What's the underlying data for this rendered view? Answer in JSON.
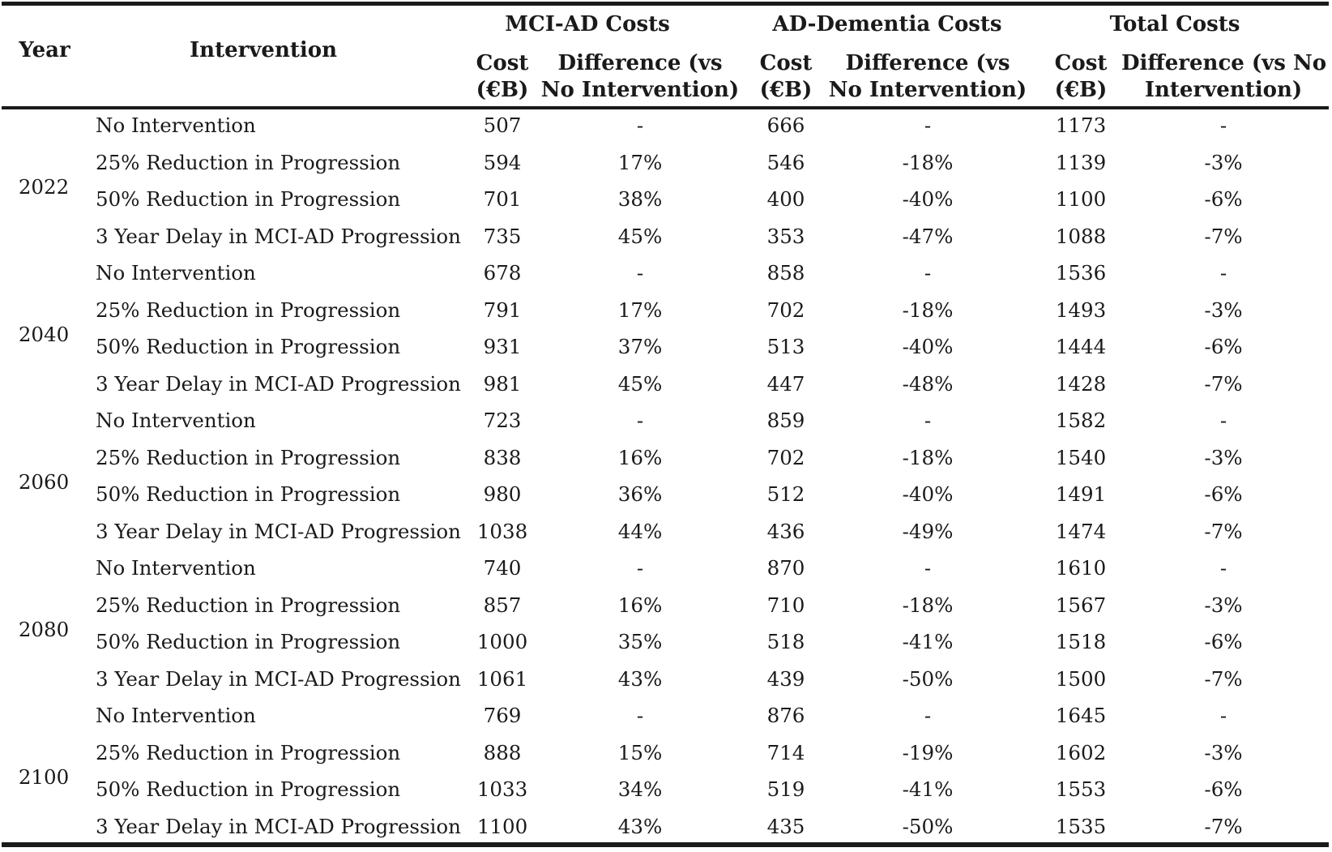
{
  "headers": {
    "year": "Year",
    "intervention": "Intervention",
    "groups": [
      "MCI-AD Costs",
      "AD-Dementia Costs",
      "Total Costs"
    ],
    "cost_line1": "Cost",
    "cost_line2": "(€B)",
    "diff_line1": "Difference (vs",
    "diff_line2": "No Intervention)",
    "total_diff_line1": "Difference (vs No",
    "total_diff_line2": "Intervention)"
  },
  "year_groups": [
    {
      "year": "2022",
      "rows": [
        {
          "intervention": "No Intervention",
          "mci_cost": "507",
          "mci_diff": "-",
          "ad_cost": "666",
          "ad_diff": "-",
          "total_cost": "1173",
          "total_diff": "-"
        },
        {
          "intervention": "25% Reduction in Progression",
          "mci_cost": "594",
          "mci_diff": "17%",
          "ad_cost": "546",
          "ad_diff": "-18%",
          "total_cost": "1139",
          "total_diff": "-3%"
        },
        {
          "intervention": "50% Reduction in Progression",
          "mci_cost": "701",
          "mci_diff": "38%",
          "ad_cost": "400",
          "ad_diff": "-40%",
          "total_cost": "1100",
          "total_diff": "-6%"
        },
        {
          "intervention": "3 Year Delay in MCI-AD Progression",
          "mci_cost": "735",
          "mci_diff": "45%",
          "ad_cost": "353",
          "ad_diff": "-47%",
          "total_cost": "1088",
          "total_diff": "-7%"
        }
      ]
    },
    {
      "year": "2040",
      "rows": [
        {
          "intervention": "No Intervention",
          "mci_cost": "678",
          "mci_diff": "-",
          "ad_cost": "858",
          "ad_diff": "-",
          "total_cost": "1536",
          "total_diff": "-"
        },
        {
          "intervention": "25% Reduction in Progression",
          "mci_cost": "791",
          "mci_diff": "17%",
          "ad_cost": "702",
          "ad_diff": "-18%",
          "total_cost": "1493",
          "total_diff": "-3%"
        },
        {
          "intervention": "50% Reduction in Progression",
          "mci_cost": "931",
          "mci_diff": "37%",
          "ad_cost": "513",
          "ad_diff": "-40%",
          "total_cost": "1444",
          "total_diff": "-6%"
        },
        {
          "intervention": "3 Year Delay in MCI-AD Progression",
          "mci_cost": "981",
          "mci_diff": "45%",
          "ad_cost": "447",
          "ad_diff": "-48%",
          "total_cost": "1428",
          "total_diff": "-7%"
        }
      ]
    },
    {
      "year": "2060",
      "rows": [
        {
          "intervention": "No Intervention",
          "mci_cost": "723",
          "mci_diff": "-",
          "ad_cost": "859",
          "ad_diff": "-",
          "total_cost": "1582",
          "total_diff": "-"
        },
        {
          "intervention": "25% Reduction in Progression",
          "mci_cost": "838",
          "mci_diff": "16%",
          "ad_cost": "702",
          "ad_diff": "-18%",
          "total_cost": "1540",
          "total_diff": "-3%"
        },
        {
          "intervention": "50% Reduction in Progression",
          "mci_cost": "980",
          "mci_diff": "36%",
          "ad_cost": "512",
          "ad_diff": "-40%",
          "total_cost": "1491",
          "total_diff": "-6%"
        },
        {
          "intervention": "3 Year Delay in MCI-AD Progression",
          "mci_cost": "1038",
          "mci_diff": "44%",
          "ad_cost": "436",
          "ad_diff": "-49%",
          "total_cost": "1474",
          "total_diff": "-7%"
        }
      ]
    },
    {
      "year": "2080",
      "rows": [
        {
          "intervention": "No Intervention",
          "mci_cost": "740",
          "mci_diff": "-",
          "ad_cost": "870",
          "ad_diff": "-",
          "total_cost": "1610",
          "total_diff": "-"
        },
        {
          "intervention": "25% Reduction in Progression",
          "mci_cost": "857",
          "mci_diff": "16%",
          "ad_cost": "710",
          "ad_diff": "-18%",
          "total_cost": "1567",
          "total_diff": "-3%"
        },
        {
          "intervention": "50% Reduction in Progression",
          "mci_cost": "1000",
          "mci_diff": "35%",
          "ad_cost": "518",
          "ad_diff": "-41%",
          "total_cost": "1518",
          "total_diff": "-6%"
        },
        {
          "intervention": "3 Year Delay in MCI-AD Progression",
          "mci_cost": "1061",
          "mci_diff": "43%",
          "ad_cost": "439",
          "ad_diff": "-50%",
          "total_cost": "1500",
          "total_diff": "-7%"
        }
      ]
    },
    {
      "year": "2100",
      "rows": [
        {
          "intervention": "No Intervention",
          "mci_cost": "769",
          "mci_diff": "-",
          "ad_cost": "876",
          "ad_diff": "-",
          "total_cost": "1645",
          "total_diff": "-"
        },
        {
          "intervention": "25% Reduction in Progression",
          "mci_cost": "888",
          "mci_diff": "15%",
          "ad_cost": "714",
          "ad_diff": "-19%",
          "total_cost": "1602",
          "total_diff": "-3%"
        },
        {
          "intervention": "50% Reduction in Progression",
          "mci_cost": "1033",
          "mci_diff": "34%",
          "ad_cost": "519",
          "ad_diff": "-41%",
          "total_cost": "1553",
          "total_diff": "-6%"
        },
        {
          "intervention": "3 Year Delay in MCI-AD Progression",
          "mci_cost": "1100",
          "mci_diff": "43%",
          "ad_cost": "435",
          "ad_diff": "-50%",
          "total_cost": "1535",
          "total_diff": "-7%"
        }
      ]
    }
  ]
}
